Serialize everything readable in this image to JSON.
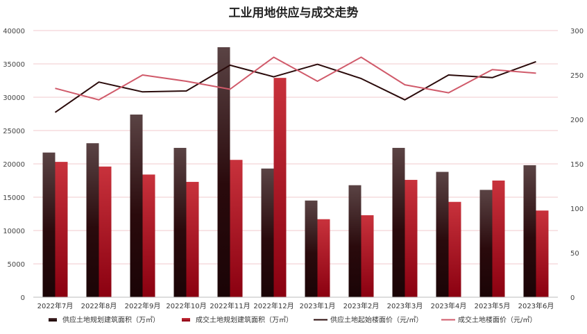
{
  "chart_data": {
    "type": "bar",
    "title": "工业用地供应与成交走势",
    "categories": [
      "2022年7月",
      "2022年8月",
      "2022年9月",
      "2022年10月",
      "2022年11月",
      "2022年12月",
      "2023年1月",
      "2023年2月",
      "2023年3月",
      "2023年4月",
      "2023年5月",
      "2023年6月"
    ],
    "y_left": {
      "ylim": [
        0,
        40000
      ],
      "ticks": [
        "0",
        "5000",
        "10000",
        "15000",
        "20000",
        "25000",
        "30000",
        "35000",
        "40000"
      ]
    },
    "y_right": {
      "ylim": [
        0,
        300
      ],
      "ticks": [
        "0",
        "50",
        "100",
        "150",
        "200",
        "250",
        "300"
      ]
    },
    "grid": true,
    "legend_position": "bottom",
    "series": [
      {
        "name": "供应土地规划建筑面积（万㎡）",
        "kind": "bar",
        "axis": "left",
        "color": "#3a0d0d",
        "values": [
          21700,
          23100,
          27400,
          22400,
          37500,
          19300,
          14500,
          16800,
          22400,
          18800,
          16100,
          19800
        ]
      },
      {
        "name": "成交土地规划建筑面积（万㎡）",
        "kind": "bar",
        "axis": "left",
        "color": "#b0101e",
        "values": [
          20300,
          19600,
          18400,
          17300,
          20600,
          32900,
          11700,
          12300,
          17600,
          14300,
          17500,
          13000
        ]
      },
      {
        "name": "供应土地起始楼面价（元/㎡）",
        "kind": "line",
        "axis": "right",
        "color": "#2a0a0a",
        "values": [
          208,
          242,
          231,
          232,
          261,
          248,
          262,
          246,
          222,
          250,
          247,
          265
        ]
      },
      {
        "name": "成交土地楼面价（元/㎡）",
        "kind": "line",
        "axis": "right",
        "color": "#d05a6a",
        "values": [
          235,
          222,
          250,
          243,
          234,
          270,
          243,
          270,
          239,
          230,
          256,
          252
        ]
      }
    ]
  }
}
